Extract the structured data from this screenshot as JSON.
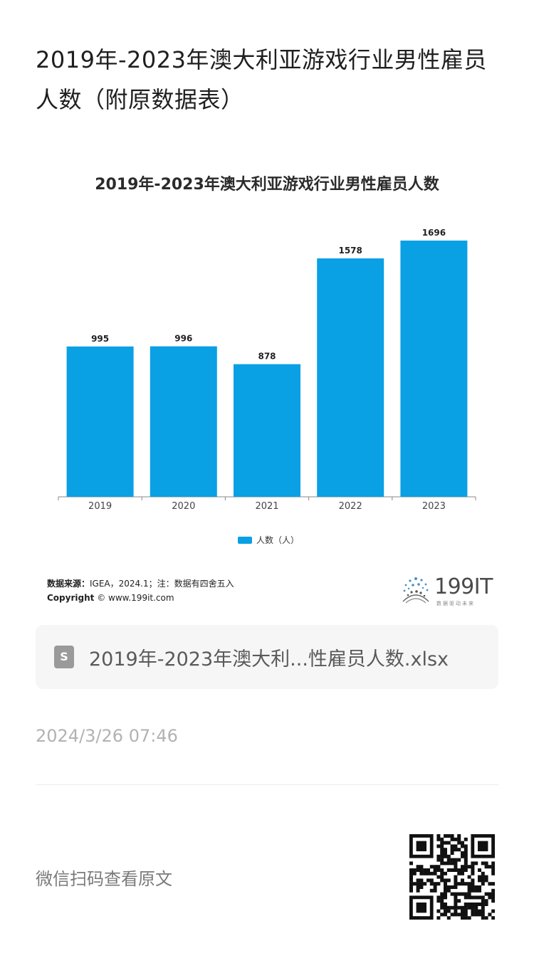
{
  "page": {
    "title": "2019年-2023年澳大利亚游戏行业男性雇员人数（附原数据表）"
  },
  "chart_data": {
    "type": "bar",
    "title": "2019年-2023年澳大利亚游戏行业男性雇员人数",
    "categories": [
      "2019",
      "2020",
      "2021",
      "2022",
      "2023"
    ],
    "series": [
      {
        "name": "人数（人）",
        "values": [
          995,
          996,
          878,
          1578,
          1696
        ],
        "color": "#0aa0e4"
      }
    ],
    "ylim": [
      0,
      1800
    ],
    "grid": false,
    "data_labels": true,
    "legend_position": "bottom"
  },
  "source": {
    "label": "数据来源：",
    "text": "IGEA，2024.1；注：数据有四舍五入",
    "copyright_label": "Copyright",
    "copyright_text": "© www.199it.com"
  },
  "logo": {
    "text": "199IT",
    "tagline": "数据驱动未来"
  },
  "file": {
    "icon": "spreadsheet-s-icon",
    "icon_letter": "S",
    "name": "2019年-2023年澳大利...性雇员人数.xlsx"
  },
  "timestamp": "2024/3/26 07:46",
  "qr": {
    "caption": "微信扫码查看原文"
  }
}
